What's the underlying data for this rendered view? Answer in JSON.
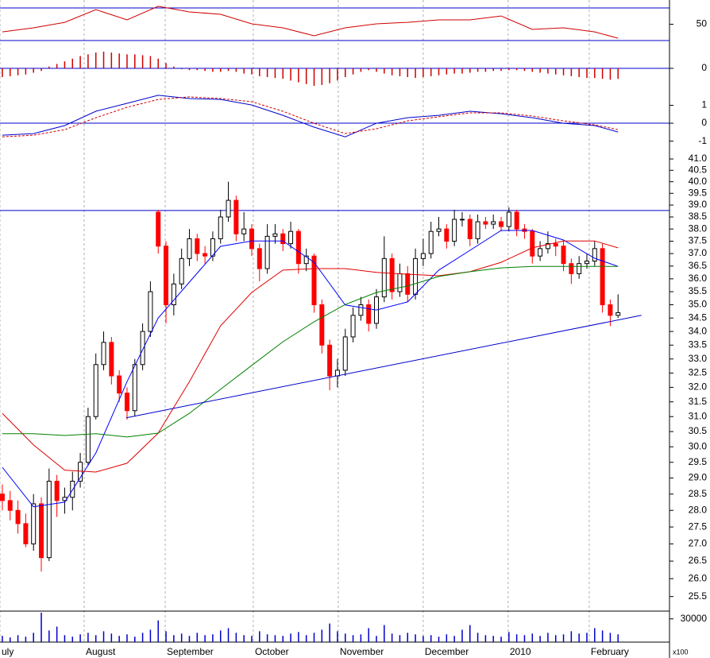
{
  "chart_data": [
    {
      "type": "line",
      "xlim": [
        -0.3,
        85.6
      ],
      "ylim": [
        11.5,
        79.75
      ],
      "yticks": [
        50
      ],
      "ref_lines": [
        70,
        30
      ],
      "ref_color": "#0000cc",
      "series": [
        {
          "color": "#d00000",
          "x": [
            0,
            4,
            8,
            12,
            16,
            20,
            24,
            28,
            32,
            36,
            40,
            44,
            48,
            52,
            56,
            60,
            64,
            68,
            72,
            76,
            79
          ],
          "values": [
            40.7,
            45.6,
            52.4,
            68.0,
            55.4,
            72.0,
            65.1,
            62.2,
            50.5,
            45.6,
            35.9,
            45.6,
            50.5,
            52.4,
            55.4,
            55.4,
            60.2,
            43.7,
            45.6,
            40.7,
            32.9
          ]
        }
      ]
    },
    {
      "type": "bar",
      "xlim": [
        -0.3,
        85.6
      ],
      "ylim": [
        -1.09,
        1.36
      ],
      "yticks": [
        0
      ],
      "ref_lines": [
        0
      ],
      "ref_color": "#0000cc",
      "color": "#d00000",
      "values": [
        -0.5,
        -0.45,
        -0.4,
        -0.35,
        -0.25,
        -0.15,
        0.1,
        0.25,
        0.4,
        0.55,
        0.7,
        0.8,
        0.9,
        0.95,
        0.9,
        0.85,
        0.8,
        0.8,
        0.75,
        0.7,
        0.55,
        0.3,
        0.1,
        -0.05,
        -0.1,
        -0.1,
        -0.15,
        -0.2,
        -0.2,
        -0.15,
        -0.2,
        -0.3,
        -0.35,
        -0.45,
        -0.5,
        -0.55,
        -0.6,
        -0.7,
        -0.8,
        -0.9,
        -1.0,
        -0.95,
        -0.85,
        -0.7,
        -0.5,
        -0.35,
        -0.2,
        -0.1,
        -0.2,
        -0.3,
        -0.4,
        -0.45,
        -0.5,
        -0.55,
        -0.5,
        -0.45,
        -0.4,
        -0.35,
        -0.3,
        -0.3,
        -0.25,
        -0.2,
        -0.2,
        -0.15,
        -0.15,
        -0.1,
        -0.1,
        -0.15,
        -0.2,
        -0.25,
        -0.3,
        -0.35,
        -0.4,
        -0.45,
        -0.5,
        -0.55,
        -0.55,
        -0.6,
        -0.65,
        -0.6
      ]
    },
    {
      "type": "line",
      "xlim": [
        -0.3,
        85.6
      ],
      "ylim": [
        -1.64,
        2.0
      ],
      "yticks": [
        1,
        0,
        -1
      ],
      "ref_lines": [
        0
      ],
      "ref_color": "#0000cc",
      "series": [
        {
          "color": "#0000cc",
          "x": [
            0,
            4,
            8,
            12,
            16,
            20,
            24,
            28,
            32,
            36,
            40,
            44,
            48,
            52,
            56,
            60,
            64,
            68,
            72,
            76,
            79
          ],
          "values": [
            -0.67,
            -0.58,
            -0.13,
            0.67,
            1.11,
            1.56,
            1.38,
            1.33,
            1.02,
            0.44,
            -0.22,
            -0.76,
            0,
            0.31,
            0.44,
            0.67,
            0.53,
            0.31,
            0,
            -0.13,
            -0.49
          ]
        },
        {
          "color": "#d00000",
          "line_style": "dashed",
          "x": [
            0,
            4,
            8,
            12,
            16,
            20,
            24,
            28,
            32,
            36,
            40,
            44,
            48,
            52,
            56,
            60,
            64,
            68,
            72,
            76,
            79
          ],
          "values": [
            -0.76,
            -0.67,
            -0.36,
            0.31,
            0.89,
            1.33,
            1.47,
            1.38,
            1.2,
            0.67,
            0,
            -0.58,
            -0.31,
            0.13,
            0.36,
            0.58,
            0.58,
            0.4,
            0.13,
            -0.09,
            -0.36
          ]
        }
      ]
    },
    {
      "type": "candlestick",
      "xlim": [
        -0.3,
        85.6
      ],
      "ylim": [
        25.1,
        41.25
      ],
      "log_scale": true,
      "yticks": [
        {
          "value": 41,
          "label": "41.0"
        },
        {
          "value": 40.5,
          "label": "40.5"
        },
        {
          "value": 40,
          "label": "40.0"
        },
        {
          "value": 39.5,
          "label": "39.5"
        },
        {
          "value": 39,
          "label": "39.0"
        },
        {
          "value": 38.5,
          "label": "38.5"
        },
        {
          "value": 38,
          "label": "38.0"
        },
        {
          "value": 37.5,
          "label": "37.5"
        },
        {
          "value": 37,
          "label": "37.0"
        },
        {
          "value": 36.5,
          "label": "36.5"
        },
        {
          "value": 36,
          "label": "36.0"
        },
        {
          "value": 35.5,
          "label": "35.5"
        },
        {
          "value": 35,
          "label": "35.0"
        },
        {
          "value": 34.5,
          "label": "34.5"
        },
        {
          "value": 34,
          "label": "34.0"
        },
        {
          "value": 33.5,
          "label": "33.5"
        },
        {
          "value": 33,
          "label": "33.0"
        },
        {
          "value": 32.5,
          "label": "32.5"
        },
        {
          "value": 32,
          "label": "32.0"
        },
        {
          "value": 31.5,
          "label": "31.5"
        },
        {
          "value": 31,
          "label": "31.0"
        },
        {
          "value": 30.5,
          "label": "30.5"
        },
        {
          "value": 30,
          "label": "30.0"
        },
        {
          "value": 29.5,
          "label": "29.5"
        },
        {
          "value": 29,
          "label": "29.0"
        },
        {
          "value": 28.5,
          "label": "28.5"
        },
        {
          "value": 28,
          "label": "28.0"
        },
        {
          "value": 27.5,
          "label": "27.5"
        },
        {
          "value": 27,
          "label": "27.0"
        },
        {
          "value": 26.5,
          "label": "26.5"
        },
        {
          "value": 26,
          "label": "26.0"
        },
        {
          "value": 25.5,
          "label": "25.5"
        }
      ],
      "ref_lines": [
        38.77
      ],
      "ref_color": "#0000cc",
      "up_color": "#ffffff",
      "down_color": "#ff0000",
      "outline_color": "#000000",
      "open": [
        28.5,
        28.3,
        28.0,
        27.6,
        27.0,
        28.2,
        26.6,
        28.9,
        28.3,
        28.4,
        28.9,
        29.5,
        31.0,
        32.8,
        33.6,
        32.4,
        31.8,
        31.2,
        32.8,
        34.0,
        38.7,
        37.3,
        35.0,
        35.8,
        36.8,
        37.6,
        37.0,
        36.9,
        37.6,
        38.5,
        39.2,
        37.8,
        38.0,
        37.2,
        36.4,
        37.7,
        37.8,
        37.4,
        37.9,
        36.6,
        36.9,
        35.0,
        33.5,
        32.4,
        32.6,
        33.8,
        34.6,
        35.0,
        34.3,
        35.3,
        36.8,
        35.5,
        36.2,
        35.4,
        36.8,
        37.0,
        37.9,
        38.0,
        37.5,
        38.4,
        38.4,
        37.6,
        38.3,
        38.2,
        38.3,
        38.1,
        38.7,
        38.0,
        37.9,
        36.9,
        37.2,
        37.4,
        37.3,
        36.6,
        36.2,
        36.6,
        36.7,
        37.2,
        35.0,
        34.6
      ],
      "high": [
        28.8,
        28.6,
        28.3,
        27.9,
        28.5,
        28.4,
        29.3,
        29.1,
        28.7,
        29.2,
        29.8,
        31.3,
        33.2,
        34.0,
        33.8,
        32.6,
        32.0,
        33.0,
        34.3,
        35.9,
        38.8,
        37.5,
        36.2,
        37.2,
        38.0,
        37.8,
        37.3,
        37.9,
        38.8,
        40.0,
        39.4,
        38.7,
        38.2,
        37.4,
        38.2,
        38.2,
        38.0,
        38.3,
        38.0,
        37.2,
        37.0,
        35.2,
        33.7,
        33.0,
        34.1,
        34.9,
        35.3,
        35.2,
        35.6,
        37.7,
        37.0,
        36.6,
        36.5,
        37.2,
        37.6,
        38.3,
        38.5,
        38.2,
        38.8,
        38.7,
        38.6,
        38.6,
        38.5,
        38.6,
        38.5,
        38.9,
        38.8,
        38.2,
        38.0,
        37.5,
        37.9,
        37.6,
        37.5,
        36.8,
        36.9,
        37.0,
        37.5,
        37.4,
        35.2,
        35.4
      ],
      "low": [
        28.0,
        27.7,
        27.3,
        26.9,
        26.8,
        26.2,
        26.5,
        27.8,
        27.9,
        28.0,
        28.7,
        29.4,
        30.9,
        32.6,
        32.1,
        31.5,
        30.9,
        31.0,
        32.6,
        33.8,
        37.0,
        34.3,
        34.6,
        35.6,
        36.5,
        36.7,
        36.6,
        36.7,
        37.4,
        38.3,
        37.5,
        37.5,
        36.9,
        35.9,
        36.2,
        37.4,
        37.1,
        37.2,
        36.2,
        36.3,
        34.7,
        33.2,
        31.9,
        32.0,
        32.4,
        33.6,
        34.4,
        34.0,
        34.1,
        35.1,
        35.2,
        35.3,
        35.1,
        35.2,
        36.5,
        36.8,
        37.7,
        37.2,
        37.3,
        38.1,
        37.3,
        37.4,
        38.0,
        38.0,
        37.9,
        37.9,
        37.7,
        37.6,
        36.6,
        36.7,
        37.0,
        36.9,
        36.3,
        35.8,
        36.0,
        36.4,
        36.5,
        34.7,
        34.2,
        34.5
      ],
      "close": [
        28.3,
        28.0,
        27.6,
        27.0,
        28.2,
        26.6,
        28.9,
        28.3,
        28.4,
        28.9,
        29.5,
        31.0,
        32.8,
        33.6,
        32.4,
        31.8,
        31.2,
        32.8,
        34.0,
        35.5,
        37.3,
        35.0,
        35.8,
        36.8,
        37.6,
        37.0,
        36.9,
        37.6,
        38.5,
        39.2,
        37.8,
        38.0,
        37.2,
        36.4,
        37.7,
        37.8,
        37.4,
        37.9,
        36.6,
        36.9,
        35.0,
        33.5,
        32.4,
        32.6,
        33.8,
        34.6,
        35.0,
        34.3,
        35.3,
        36.8,
        35.5,
        36.2,
        35.4,
        36.8,
        37.0,
        37.9,
        38.0,
        37.5,
        38.4,
        38.4,
        37.6,
        38.3,
        38.2,
        38.3,
        38.1,
        38.7,
        38.0,
        37.9,
        36.9,
        37.2,
        37.4,
        37.3,
        36.6,
        36.2,
        36.6,
        36.7,
        37.2,
        35.0,
        34.6,
        34.7
      ],
      "series": [
        {
          "color": "#0000ff",
          "x": [
            0,
            4,
            8,
            12,
            16,
            20,
            24,
            28,
            32,
            36,
            40,
            44,
            48,
            52,
            56,
            60,
            64,
            68,
            72,
            76,
            79
          ],
          "values": [
            29.34,
            28.11,
            28.25,
            29.8,
            32.2,
            34.5,
            35.87,
            37.29,
            37.51,
            37.51,
            36.65,
            34.99,
            34.8,
            35.11,
            36.34,
            37.13,
            37.94,
            37.94,
            37.55,
            36.81,
            36.49
          ]
        },
        {
          "color": "#e00000",
          "x": [
            0,
            4,
            8,
            12,
            16,
            20,
            24,
            28,
            32,
            36,
            40,
            44,
            48,
            52,
            56,
            60,
            64,
            68,
            72,
            76,
            79
          ],
          "values": [
            31.11,
            30.06,
            29.25,
            29.19,
            29.47,
            30.45,
            32.2,
            34.21,
            35.47,
            36.34,
            36.4,
            36.4,
            36.25,
            36.18,
            36.12,
            36.28,
            36.65,
            37.23,
            37.51,
            37.51,
            37.23
          ]
        },
        {
          "color": "#008000",
          "x": [
            0,
            4,
            8,
            12,
            16,
            20,
            24,
            28,
            32,
            36,
            40,
            44,
            48,
            52,
            56,
            60,
            64,
            68,
            72,
            76,
            79
          ],
          "values": [
            30.43,
            30.43,
            30.37,
            30.43,
            30.32,
            30.45,
            31.11,
            31.93,
            32.77,
            33.62,
            34.36,
            35.01,
            35.47,
            35.72,
            36.09,
            36.28,
            36.43,
            36.49,
            36.49,
            36.49,
            36.49
          ]
        },
        {
          "color": "#0000cc",
          "x": [
            15.9,
            82
          ],
          "values": [
            30.96,
            34.6
          ]
        }
      ]
    },
    {
      "type": "bar",
      "xlim": [
        -0.3,
        85.6
      ],
      "ylim": [
        0,
        40000
      ],
      "yticks": [
        30000
      ],
      "color": "#0000cc",
      "unit_label": "x100",
      "grid": true,
      "xticks": [
        {
          "value": -0.3,
          "label": "uly"
        },
        {
          "value": 10.5,
          "label": "August"
        },
        {
          "value": 20.9,
          "label": "September"
        },
        {
          "value": 32.2,
          "label": "October"
        },
        {
          "value": 43.1,
          "label": "November"
        },
        {
          "value": 54,
          "label": "December"
        },
        {
          "value": 64.9,
          "label": "2010"
        },
        {
          "value": 75.3,
          "label": "February"
        }
      ],
      "values": [
        8000,
        6000,
        9000,
        7000,
        12000,
        38000,
        15000,
        20000,
        9000,
        7000,
        10000,
        12000,
        9000,
        14000,
        11000,
        8000,
        10000,
        7000,
        12000,
        16000,
        28000,
        14000,
        9000,
        11000,
        8000,
        12000,
        9000,
        10000,
        15000,
        18000,
        12000,
        9000,
        8000,
        14000,
        10000,
        9000,
        8000,
        11000,
        13000,
        9000,
        12000,
        16000,
        24000,
        14000,
        11000,
        9000,
        10000,
        18000,
        8000,
        22000,
        11000,
        9000,
        12000,
        10000,
        8000,
        9000,
        7000,
        10000,
        8000,
        16000,
        22000,
        12000,
        9000,
        8000,
        7000,
        13000,
        10000,
        9000,
        11000,
        8000,
        12000,
        9000,
        10000,
        14000,
        11000,
        12000,
        18000,
        15000,
        12000,
        10000
      ]
    }
  ]
}
